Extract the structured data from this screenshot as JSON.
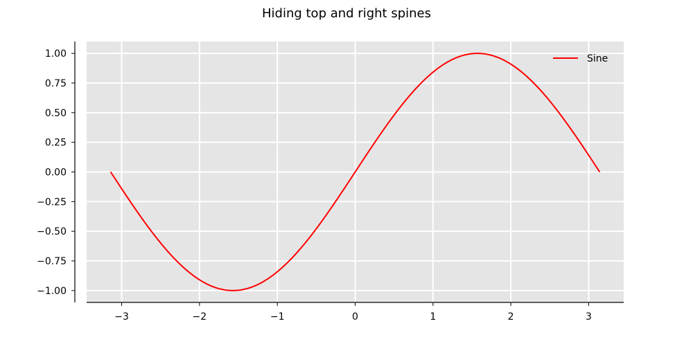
{
  "chart_data": {
    "type": "line",
    "title": "Hiding top and right spines",
    "xlabel": "",
    "ylabel": "",
    "xlim": [
      -3.45,
      3.45
    ],
    "ylim": [
      -1.1,
      1.1
    ],
    "x_ticks": [
      -3,
      -2,
      -1,
      0,
      1,
      2,
      3
    ],
    "x_tick_labels": [
      "−3",
      "−2",
      "−1",
      "0",
      "1",
      "2",
      "3"
    ],
    "y_ticks": [
      -1,
      -0.75,
      -0.5,
      -0.25,
      0,
      0.25,
      0.5,
      0.75,
      1
    ],
    "y_tick_labels": [
      "−1.00",
      "−0.75",
      "−0.50",
      "−0.25",
      "0.00",
      "0.25",
      "0.50",
      "0.75",
      "1.00"
    ],
    "grid": true,
    "legend_position": "top-right",
    "axes_background": "#e5e5e5",
    "hidden_spines": [
      "top",
      "right"
    ],
    "series": [
      {
        "name": "Sine",
        "color": "#ff0000",
        "x": [
          -3.142,
          -2.793,
          -2.443,
          -2.094,
          -1.745,
          -1.396,
          -1.047,
          -0.698,
          -0.349,
          0.0,
          0.349,
          0.698,
          1.047,
          1.396,
          1.745,
          2.094,
          2.443,
          2.793,
          3.142
        ],
        "y": [
          0.0,
          -0.342,
          -0.643,
          -0.866,
          -0.985,
          -0.985,
          -0.866,
          -0.643,
          -0.342,
          0.0,
          0.342,
          0.643,
          0.866,
          0.985,
          0.985,
          0.866,
          0.643,
          0.342,
          0.0
        ]
      }
    ]
  }
}
